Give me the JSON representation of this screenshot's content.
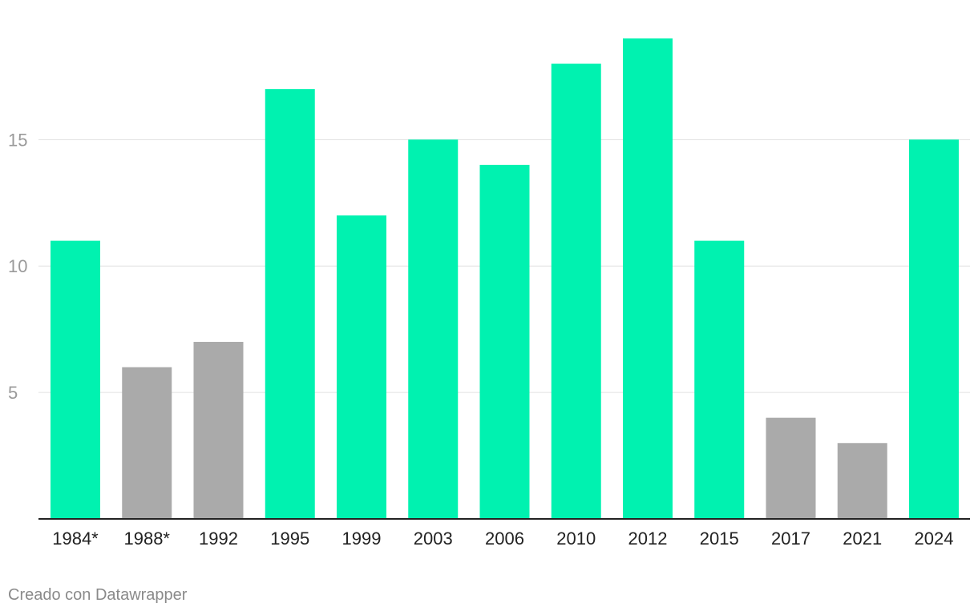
{
  "chart_data": {
    "type": "bar",
    "categories": [
      "1984*",
      "1988*",
      "1992",
      "1995",
      "1999",
      "2003",
      "2006",
      "2010",
      "2012",
      "2015",
      "2017",
      "2021",
      "2024"
    ],
    "values": [
      11,
      6,
      7,
      17,
      12,
      15,
      14,
      18,
      19,
      11,
      4,
      3,
      15
    ],
    "highlight": [
      true,
      false,
      false,
      true,
      true,
      true,
      true,
      true,
      true,
      true,
      false,
      false,
      true
    ],
    "colors": {
      "highlight": "#00f2b0",
      "muted": "#aaaaaa"
    },
    "yticks": [
      5,
      10,
      15
    ],
    "ylim": [
      0,
      19
    ],
    "grid": true,
    "title": "",
    "xlabel": "",
    "ylabel": ""
  },
  "footer": {
    "credit": "Creado con Datawrapper"
  }
}
